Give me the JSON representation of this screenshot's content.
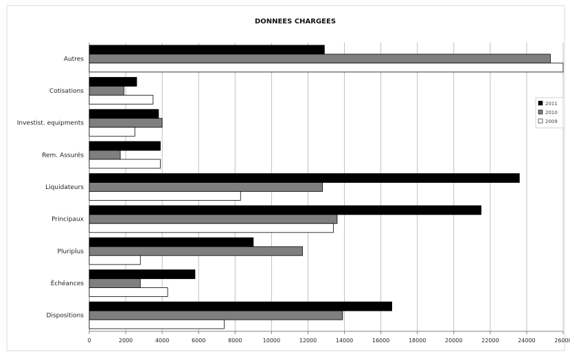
{
  "chart_data": {
    "type": "bar",
    "orientation": "horizontal",
    "title": "DONNEES CHARGEES",
    "xlabel": "",
    "ylabel": "",
    "xlim": [
      0,
      26000
    ],
    "xticks": [
      0,
      2000,
      4000,
      6000,
      8000,
      10000,
      12000,
      14000,
      16000,
      18000,
      20000,
      22000,
      24000,
      26000
    ],
    "grid": true,
    "legend_position": "right",
    "categories": [
      "Autres",
      "Cotisations",
      "Investist. equipments",
      "Rem. Assurés",
      "Liquidateurs",
      "Principaux",
      "Pluriplus",
      "Échéances",
      "Dispositions"
    ],
    "series": [
      {
        "name": "2011",
        "color": "#000000",
        "values": [
          12900,
          2600,
          3800,
          3900,
          23600,
          21500,
          9000,
          5800,
          16600
        ]
      },
      {
        "name": "2010",
        "color": "#7f7f7f",
        "values": [
          25300,
          1900,
          4000,
          1700,
          12800,
          13600,
          11700,
          2800,
          13900
        ]
      },
      {
        "name": "2009",
        "color": "#ffffff",
        "values": [
          26000,
          3500,
          2500,
          3900,
          8300,
          13400,
          2800,
          4300,
          7400
        ]
      }
    ]
  }
}
